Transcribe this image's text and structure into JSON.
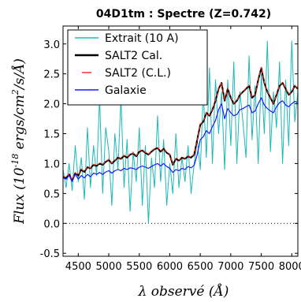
{
  "chart_data": {
    "type": "line",
    "title": "04D1tm : Spectre (Z=0.742)",
    "xlabel": "λ observé (Å)",
    "ylabel": "Flux (10^-18 ergs/cm^2/s/Å)",
    "ylabel_parts": {
      "prefix": "Flux (10",
      "exponent": "-18",
      "suffix": " ergs/cm",
      "exp2": "2",
      "tail": "/s/Å)"
    },
    "xlim": [
      4250,
      8100
    ],
    "ylim": [
      -0.55,
      3.3
    ],
    "x_ticks": [
      4500,
      5000,
      5500,
      6000,
      6500,
      7000,
      7500,
      8000
    ],
    "x_tick_labels": [
      "4500",
      "5000",
      "5500",
      "6000",
      "6500",
      "7000",
      "7500",
      "8000"
    ],
    "y_ticks": [
      -0.5,
      0.0,
      0.5,
      1.0,
      1.5,
      2.0,
      2.5,
      3.0
    ],
    "y_tick_labels": [
      "-0.5",
      "0.0",
      "0.5",
      "1.0",
      "1.5",
      "2.0",
      "2.5",
      "3.0"
    ],
    "grid": false,
    "zero_line": true,
    "legend_position": "top-left",
    "series": [
      {
        "name": "Extrait (10 A)",
        "color": "#1bb8b8",
        "style": "solid",
        "x": [
          4250,
          4300,
          4350,
          4400,
          4450,
          4500,
          4550,
          4600,
          4650,
          4700,
          4750,
          4800,
          4850,
          4900,
          4950,
          5000,
          5050,
          5100,
          5150,
          5200,
          5250,
          5300,
          5350,
          5400,
          5450,
          5500,
          5550,
          5600,
          5650,
          5700,
          5750,
          5800,
          5850,
          5900,
          5950,
          6000,
          6050,
          6100,
          6150,
          6200,
          6250,
          6300,
          6350,
          6400,
          6450,
          6500,
          6550,
          6600,
          6650,
          6700,
          6750,
          6800,
          6850,
          6900,
          6950,
          7000,
          7050,
          7100,
          7150,
          7200,
          7250,
          7300,
          7350,
          7400,
          7450,
          7500,
          7550,
          7600,
          7650,
          7700,
          7750,
          7800,
          7850,
          7900,
          7950,
          8000,
          8050,
          8100
        ],
        "y": [
          0.9,
          0.6,
          1.0,
          0.55,
          1.3,
          0.7,
          1.1,
          0.4,
          1.6,
          0.6,
          1.3,
          0.8,
          2.1,
          0.5,
          1.6,
          1.2,
          0.3,
          1.5,
          0.9,
          2.1,
          0.6,
          1.4,
          0.2,
          1.2,
          0.7,
          1.6,
          0.3,
          1.3,
          0.0,
          1.1,
          0.6,
          1.8,
          0.7,
          1.4,
          0.3,
          1.0,
          0.5,
          1.5,
          0.6,
          1.1,
          0.7,
          1.3,
          0.5,
          1.0,
          1.4,
          0.9,
          2.2,
          1.1,
          2.6,
          1.0,
          2.4,
          1.5,
          2.2,
          0.9,
          2.4,
          1.3,
          2.7,
          1.0,
          2.2,
          1.7,
          1.1,
          2.8,
          1.4,
          2.3,
          1.0,
          2.5,
          1.5,
          3.05,
          1.2,
          2.2,
          1.6,
          2.7,
          1.0,
          2.4,
          1.3,
          3.05,
          1.7,
          2.2
        ]
      },
      {
        "name": "SALT2 Cal.",
        "color": "#000000",
        "style": "solid",
        "x": [
          4250,
          4300,
          4350,
          4400,
          4450,
          4500,
          4550,
          4600,
          4650,
          4700,
          4750,
          4800,
          4850,
          4900,
          4950,
          5000,
          5050,
          5100,
          5150,
          5200,
          5250,
          5300,
          5350,
          5400,
          5450,
          5500,
          5550,
          5600,
          5650,
          5700,
          5750,
          5800,
          5850,
          5900,
          5950,
          6000,
          6050,
          6100,
          6150,
          6200,
          6250,
          6300,
          6350,
          6400,
          6450,
          6500,
          6550,
          6600,
          6650,
          6700,
          6750,
          6800,
          6850,
          6900,
          6950,
          7000,
          7050,
          7100,
          7150,
          7200,
          7250,
          7300,
          7350,
          7400,
          7450,
          7500,
          7550,
          7600,
          7650,
          7700,
          7750,
          7800,
          7850,
          7900,
          7950,
          8000,
          8050,
          8100
        ],
        "y": [
          0.78,
          0.76,
          0.82,
          0.72,
          0.84,
          0.8,
          0.9,
          0.86,
          0.94,
          0.92,
          0.98,
          0.96,
          1.0,
          0.98,
          1.03,
          1.06,
          1.0,
          1.05,
          1.1,
          1.08,
          1.13,
          1.1,
          1.15,
          1.17,
          1.12,
          1.2,
          1.22,
          1.18,
          1.15,
          1.2,
          1.24,
          1.26,
          1.2,
          1.25,
          1.18,
          1.15,
          0.98,
          1.08,
          1.05,
          1.1,
          1.08,
          1.12,
          1.1,
          1.15,
          1.4,
          1.65,
          1.7,
          1.85,
          1.8,
          1.9,
          2.05,
          2.25,
          2.35,
          2.05,
          2.25,
          2.1,
          2.0,
          2.05,
          2.15,
          2.2,
          2.25,
          2.3,
          2.1,
          2.15,
          2.4,
          2.6,
          2.35,
          2.2,
          2.1,
          2.0,
          2.15,
          2.3,
          2.35,
          2.25,
          2.15,
          2.2,
          2.3,
          2.25
        ]
      },
      {
        "name": "SALT2 (C.L.)",
        "color": "#ff3020",
        "style": "dashed",
        "x": [
          4250,
          4300,
          4350,
          4400,
          4450,
          4500,
          4550,
          4600,
          4650,
          4700,
          4750,
          4800,
          4850,
          4900,
          4950,
          5000,
          5050,
          5100,
          5150,
          5200,
          5250,
          5300,
          5350,
          5400,
          5450,
          5500,
          5550,
          5600,
          5650,
          5700,
          5750,
          5800,
          5850,
          5900,
          5950,
          6000,
          6050,
          6100,
          6150,
          6200,
          6250,
          6300,
          6350,
          6400,
          6450,
          6500,
          6550,
          6600,
          6650,
          6700,
          6750,
          6800,
          6850,
          6900,
          6950,
          7000,
          7050,
          7100,
          7150,
          7200,
          7250,
          7300,
          7350,
          7400,
          7450,
          7500,
          7550,
          7600,
          7650,
          7700,
          7750,
          7800,
          7850,
          7900,
          7950,
          8000,
          8050,
          8100
        ],
        "y": [
          0.79,
          0.77,
          0.83,
          0.73,
          0.85,
          0.81,
          0.91,
          0.87,
          0.95,
          0.93,
          0.99,
          0.97,
          1.01,
          0.99,
          1.04,
          1.07,
          1.01,
          1.06,
          1.11,
          1.09,
          1.14,
          1.11,
          1.16,
          1.18,
          1.13,
          1.21,
          1.23,
          1.19,
          1.16,
          1.21,
          1.25,
          1.27,
          1.21,
          1.26,
          1.19,
          1.16,
          0.99,
          1.09,
          1.06,
          1.11,
          1.09,
          1.13,
          1.11,
          1.16,
          1.41,
          1.66,
          1.71,
          1.86,
          1.81,
          1.91,
          2.06,
          2.26,
          2.36,
          2.06,
          2.26,
          2.11,
          2.01,
          2.06,
          2.16,
          2.21,
          2.26,
          2.31,
          2.11,
          2.16,
          2.41,
          2.61,
          2.36,
          2.21,
          2.11,
          2.01,
          2.16,
          2.31,
          2.36,
          2.26,
          2.16,
          2.21,
          2.31,
          2.26
        ]
      },
      {
        "name": "Galaxie",
        "color": "#1a1aff",
        "style": "solid",
        "x": [
          4250,
          4300,
          4350,
          4400,
          4450,
          4500,
          4550,
          4600,
          4650,
          4700,
          4750,
          4800,
          4850,
          4900,
          4950,
          5000,
          5050,
          5100,
          5150,
          5200,
          5250,
          5300,
          5350,
          5400,
          5450,
          5500,
          5550,
          5600,
          5650,
          5700,
          5750,
          5800,
          5850,
          5900,
          5950,
          6000,
          6050,
          6100,
          6150,
          6200,
          6250,
          6300,
          6350,
          6400,
          6450,
          6500,
          6550,
          6600,
          6650,
          6700,
          6750,
          6800,
          6850,
          6900,
          6950,
          7000,
          7050,
          7100,
          7150,
          7200,
          7250,
          7300,
          7350,
          7400,
          7450,
          7500,
          7550,
          7600,
          7650,
          7700,
          7750,
          7800,
          7850,
          7900,
          7950,
          8000,
          8050,
          8100
        ],
        "y": [
          0.76,
          0.74,
          0.8,
          0.7,
          0.82,
          0.74,
          0.8,
          0.76,
          0.82,
          0.78,
          0.84,
          0.82,
          0.85,
          0.82,
          0.86,
          0.88,
          0.84,
          0.88,
          0.9,
          0.88,
          0.92,
          0.9,
          0.93,
          0.92,
          0.9,
          0.94,
          0.96,
          0.94,
          0.92,
          0.95,
          0.98,
          1.0,
          0.96,
          1.0,
          0.95,
          0.92,
          0.85,
          0.9,
          0.88,
          0.92,
          0.9,
          0.95,
          0.93,
          0.97,
          1.15,
          1.4,
          1.45,
          1.55,
          1.5,
          1.62,
          1.72,
          1.9,
          2.0,
          1.75,
          1.92,
          1.85,
          1.8,
          1.82,
          1.9,
          1.92,
          1.95,
          1.98,
          1.85,
          1.88,
          2.0,
          2.1,
          1.98,
          1.92,
          1.88,
          1.85,
          1.95,
          2.02,
          2.05,
          1.98,
          1.95,
          2.0,
          2.04,
          2.02
        ]
      }
    ]
  }
}
